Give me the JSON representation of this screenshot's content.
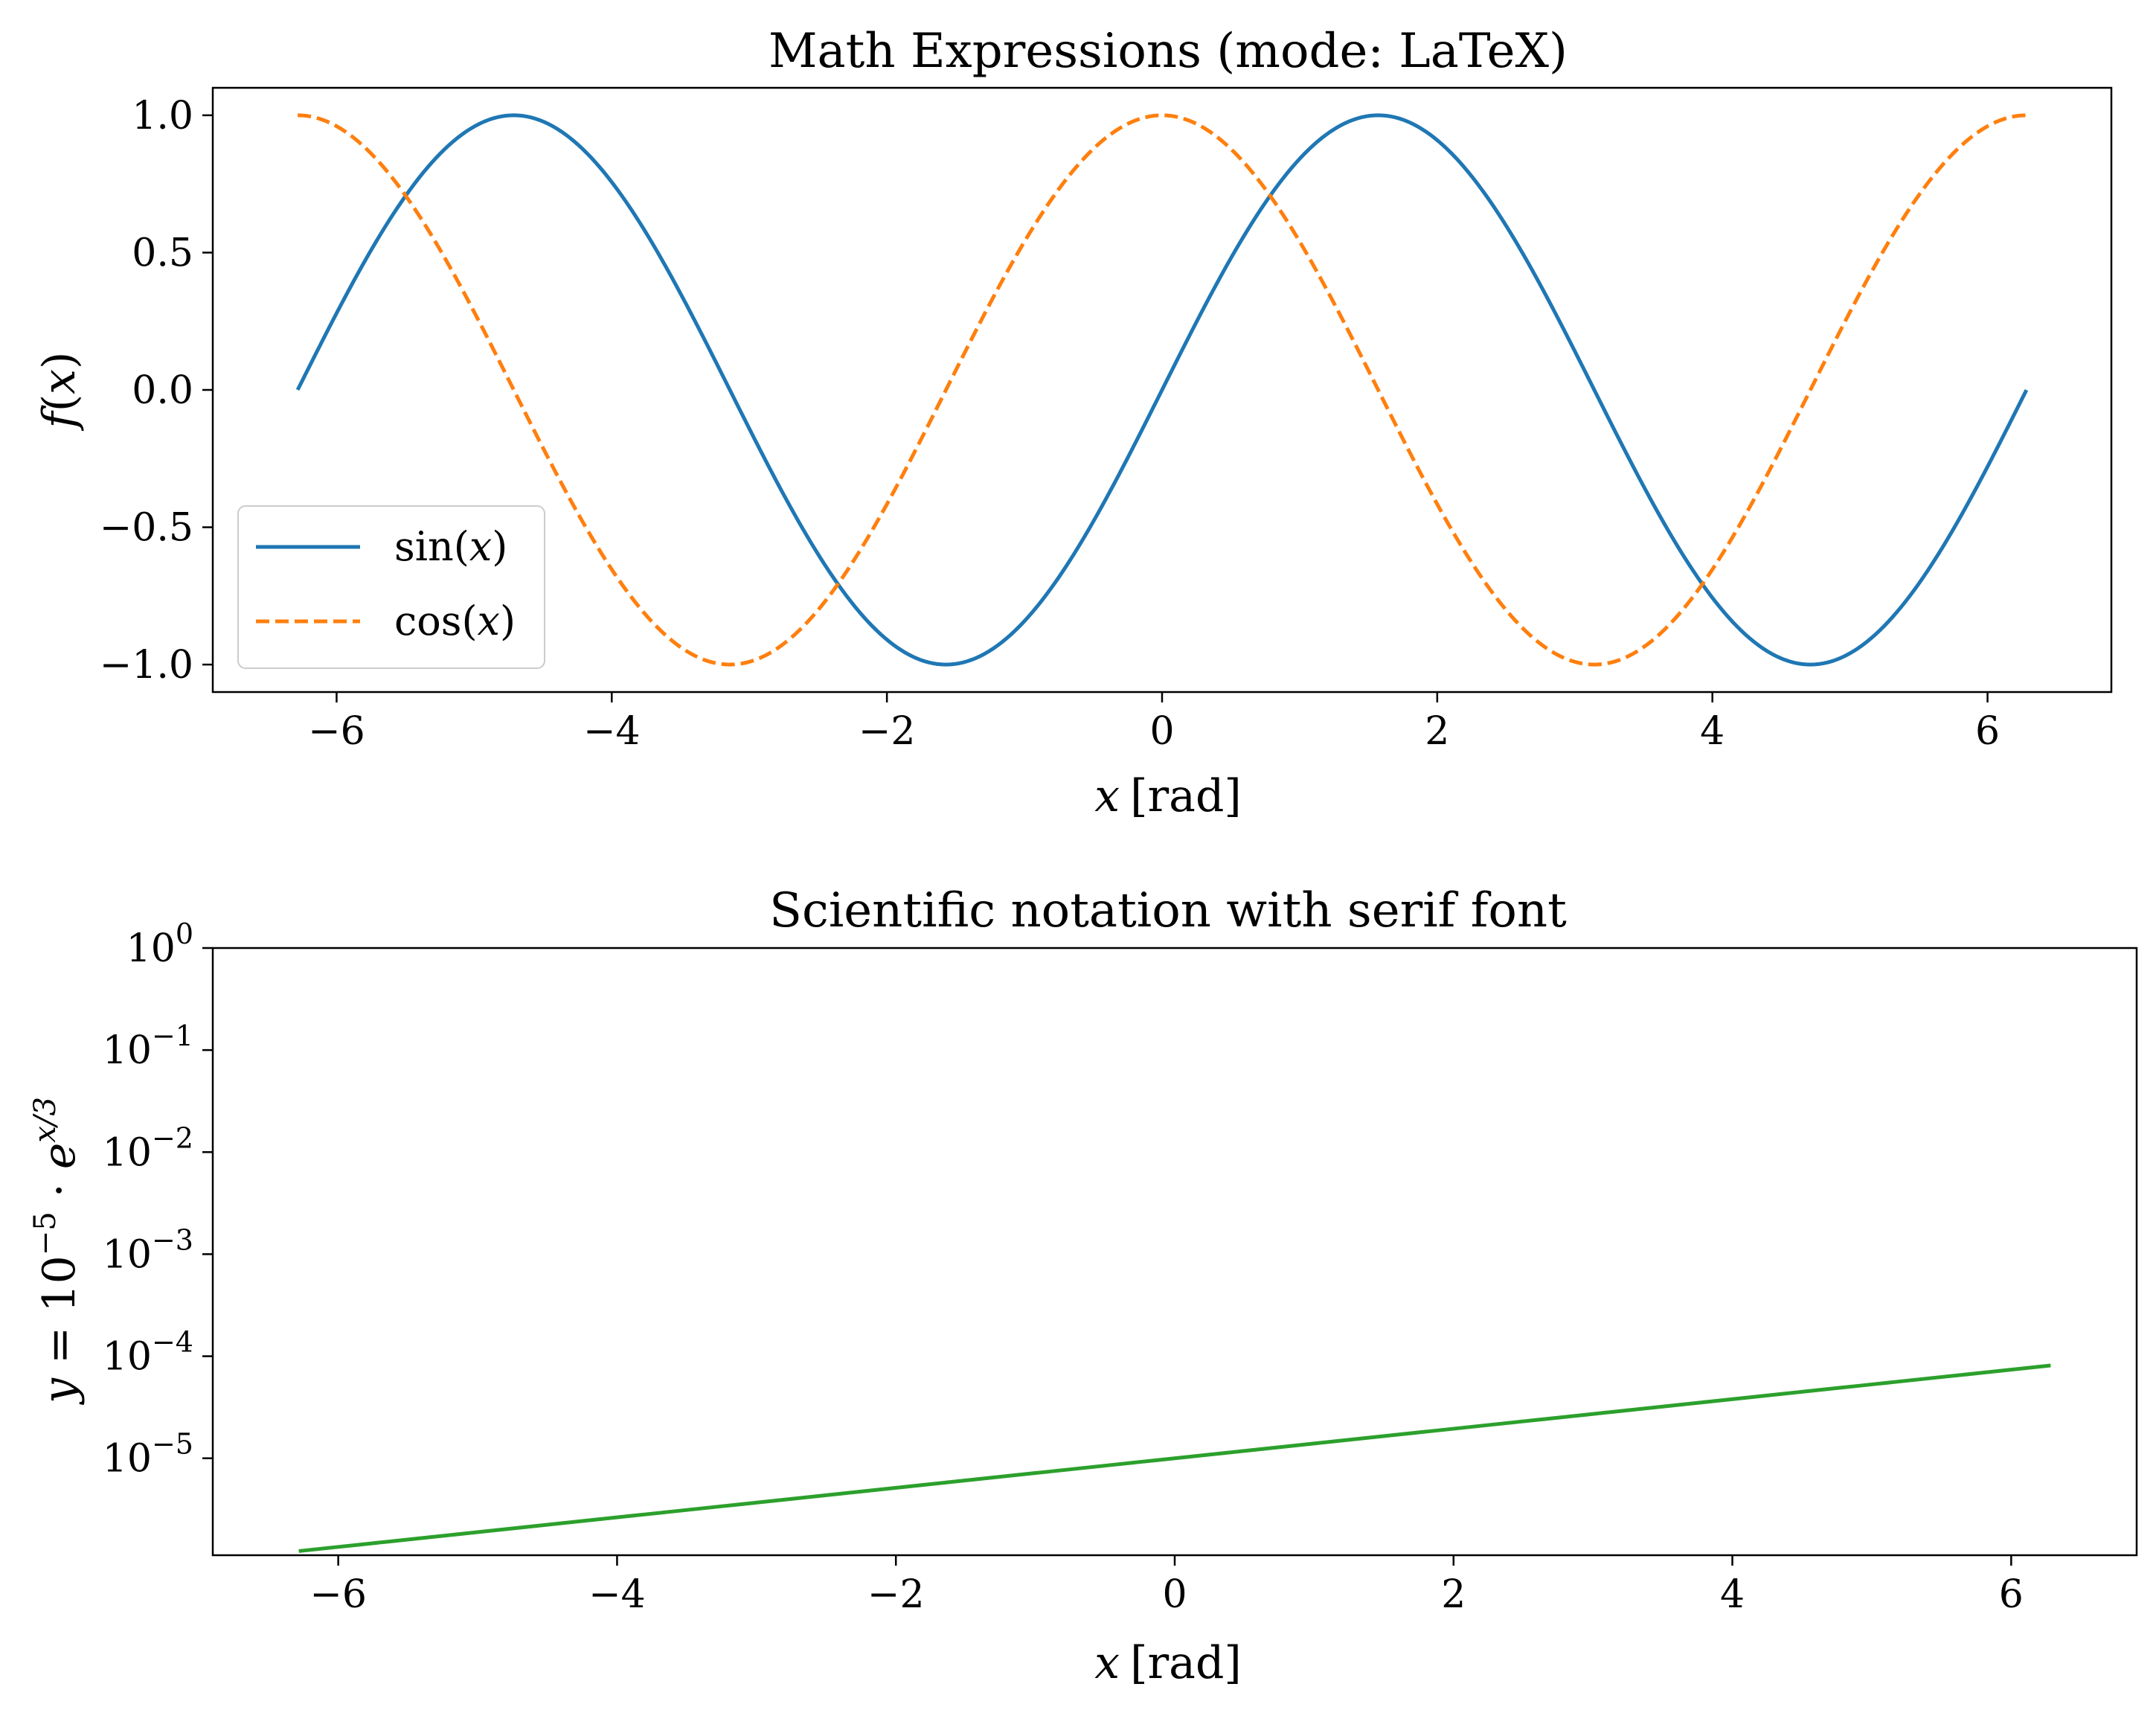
{
  "chart_data": [
    {
      "type": "line",
      "title": "Math Expressions (mode: LaTeX)",
      "xlabel": {
        "var": "x",
        "unit": "[rad]"
      },
      "ylabel": {
        "f": "f",
        "open": "(",
        "var": "x",
        "close": ")"
      },
      "xlim": [
        -6.9,
        6.9
      ],
      "ylim": [
        -1.1,
        1.1
      ],
      "x_range": [
        -6.283,
        6.283
      ],
      "xticks": [
        -6,
        -4,
        -2,
        0,
        2,
        4,
        6
      ],
      "xtick_labels": [
        "−6",
        "−4",
        "−2",
        "0",
        "2",
        "4",
        "6"
      ],
      "yticks": [
        -1.0,
        -0.5,
        0.0,
        0.5,
        1.0
      ],
      "ytick_labels": [
        "−1.0",
        "−0.5",
        "0.0",
        "0.5",
        "1.0"
      ],
      "grid": false,
      "legend": "lower-left",
      "series": [
        {
          "name": "sin(x)",
          "fn": "sin",
          "color": "#1f77b4",
          "style": "solid",
          "legend_text": {
            "fn": "sin(",
            "var": "x",
            "close": ")"
          }
        },
        {
          "name": "cos(x)",
          "fn": "cos",
          "color": "#ff7f0e",
          "style": "dashed",
          "legend_text": {
            "fn": "cos(",
            "var": "x",
            "close": ")"
          }
        }
      ]
    },
    {
      "type": "line",
      "title": "Scientific notation with serif font",
      "xlabel": {
        "var": "x",
        "unit": "[rad]"
      },
      "ylabel": {
        "y": "y",
        "eq": " = 10",
        "exp": "−5",
        "dot": " · ",
        "e": "e",
        "exp2": "x/3"
      },
      "xlim": [
        -6.9,
        6.9
      ],
      "ylog": true,
      "ylim_exp": [
        -5.95,
        0
      ],
      "x_range": [
        -6.283,
        6.283
      ],
      "xticks": [
        -6,
        -4,
        -2,
        0,
        2,
        4,
        6
      ],
      "xtick_labels": [
        "−6",
        "−4",
        "−2",
        "0",
        "2",
        "4",
        "6"
      ],
      "ytick_exps": [
        0,
        -1,
        -2,
        -3,
        -4,
        -5
      ],
      "ytick_labels": [
        {
          "base": "10",
          "exp": "0"
        },
        {
          "base": "10",
          "exp": "−1"
        },
        {
          "base": "10",
          "exp": "−2"
        },
        {
          "base": "10",
          "exp": "−3"
        },
        {
          "base": "10",
          "exp": "−4"
        },
        {
          "base": "10",
          "exp": "−5"
        }
      ],
      "grid": false,
      "series": [
        {
          "name": "",
          "fn": "1e-5*exp(x/3)",
          "coef": 1e-05,
          "rate": 0.3333,
          "color": "#2ca02c",
          "style": "solid"
        }
      ]
    }
  ]
}
